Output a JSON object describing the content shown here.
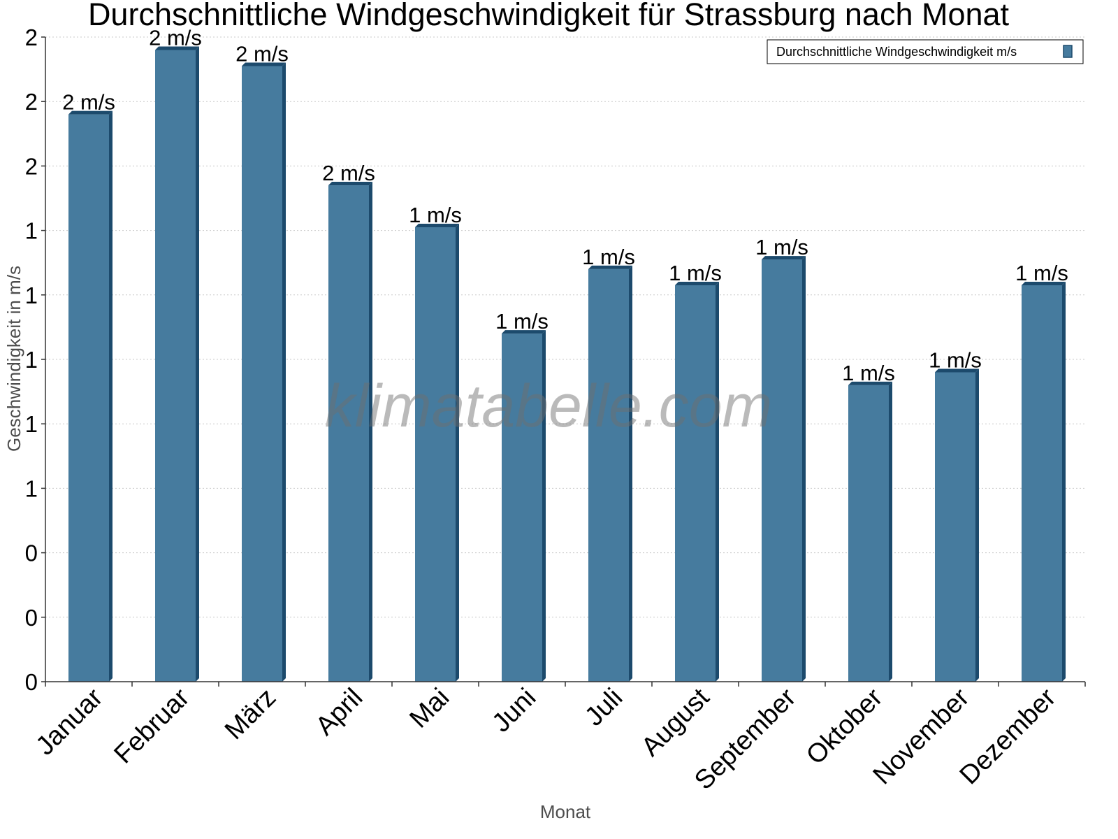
{
  "chart_data": {
    "type": "bar",
    "title": "Durchschnittliche Windgeschwindigkeit für Strassburg nach Monat",
    "xlabel": "Monat",
    "ylabel": "Geschwindigkeit in m/s",
    "categories": [
      "Januar",
      "Februar",
      "März",
      "April",
      "Mai",
      "Juni",
      "Juli",
      "August",
      "September",
      "Oktober",
      "November",
      "Dezember"
    ],
    "series": [
      {
        "name": "Durchschnittliche Windgeschwindigkeit m/s",
        "values": [
          1.76,
          1.96,
          1.91,
          1.54,
          1.41,
          1.08,
          1.28,
          1.23,
          1.31,
          0.92,
          0.96,
          1.23
        ],
        "labels": [
          "2 m/s",
          "2 m/s",
          "2 m/s",
          "2 m/s",
          "1 m/s",
          "1 m/s",
          "1 m/s",
          "1 m/s",
          "1 m/s",
          "1 m/s",
          "1 m/s",
          "1 m/s"
        ]
      }
    ],
    "ylim": [
      0,
      2
    ],
    "yticks": [
      0,
      0.2,
      0.4,
      0.6,
      0.8,
      1.0,
      1.2,
      1.4,
      1.6,
      1.8,
      2.0
    ],
    "ytick_labels": [
      "0",
      "0",
      "0",
      "1",
      "1",
      "1",
      "1",
      "1",
      "2",
      "2",
      "2"
    ],
    "grid": true,
    "legend_position": "top-right",
    "colors": {
      "bar": "#467b9e",
      "bar_side": "#1c4a6c",
      "bar_top": "#1c4a6c"
    },
    "watermark": "klimatabelle.com"
  }
}
